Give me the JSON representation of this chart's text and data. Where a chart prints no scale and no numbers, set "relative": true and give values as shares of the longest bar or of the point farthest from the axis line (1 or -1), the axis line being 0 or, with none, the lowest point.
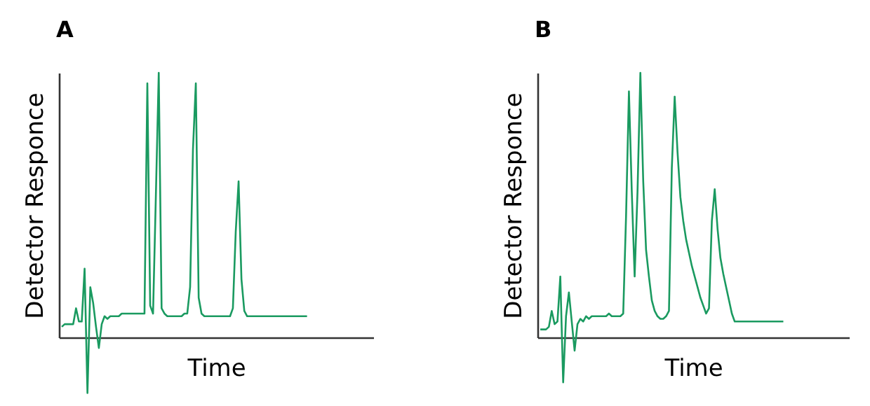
{
  "chart_data": [
    {
      "type": "line",
      "title": "A",
      "xlabel": "Time",
      "ylabel": "Detector Responce",
      "relative": true,
      "color": "#1a9a60",
      "categories": [
        null,
        null,
        null,
        null,
        null,
        null,
        null,
        null,
        null,
        null,
        null,
        null,
        null,
        null,
        null,
        null,
        null,
        null,
        null,
        null,
        null,
        null,
        null,
        null,
        null,
        null,
        null,
        null,
        null,
        null,
        null,
        null,
        null,
        null,
        null,
        null,
        null,
        null,
        null,
        null,
        null,
        null,
        null,
        null,
        null,
        null,
        null,
        null,
        null,
        null,
        null,
        null,
        null,
        null,
        null,
        null,
        null,
        null,
        null,
        null,
        null,
        null,
        null,
        null,
        null,
        null,
        null,
        null,
        null,
        null,
        null,
        null,
        null,
        null,
        null,
        null,
        null,
        null,
        null,
        null,
        null,
        null,
        null,
        null,
        null,
        null,
        null
      ],
      "values": [
        0.04,
        0.05,
        0.05,
        0.05,
        0.05,
        0.11,
        0.06,
        0.06,
        0.26,
        -0.21,
        0.19,
        0.13,
        0.04,
        -0.04,
        0.05,
        0.08,
        0.07,
        0.08,
        0.08,
        0.08,
        0.08,
        0.09,
        0.09,
        0.09,
        0.09,
        0.09,
        0.09,
        0.09,
        0.09,
        0.09,
        0.96,
        0.12,
        0.09,
        0.54,
        1,
        0.11,
        0.09,
        0.08,
        0.08,
        0.08,
        0.08,
        0.08,
        0.08,
        0.09,
        0.09,
        0.19,
        0.71,
        0.96,
        0.15,
        0.09,
        0.08,
        0.08,
        0.08,
        0.08,
        0.08,
        0.08,
        0.08,
        0.08,
        0.08,
        0.08,
        0.11,
        0.4,
        0.59,
        0.22,
        0.1,
        0.08,
        0.08,
        0.08,
        0.08,
        0.08,
        0.08,
        0.08,
        0.08,
        0.08,
        0.08,
        0.08,
        0.08,
        0.08,
        0.08,
        0.08,
        0.08,
        0.08,
        0.08,
        0.08,
        0.08,
        0.08,
        0.08
      ]
    },
    {
      "type": "line",
      "title": "B",
      "xlabel": "Time",
      "ylabel": "Detector Responce",
      "relative": true,
      "color": "#1a9a60",
      "categories": [
        null,
        null,
        null,
        null,
        null,
        null,
        null,
        null,
        null,
        null,
        null,
        null,
        null,
        null,
        null,
        null,
        null,
        null,
        null,
        null,
        null,
        null,
        null,
        null,
        null,
        null,
        null,
        null,
        null,
        null,
        null,
        null,
        null,
        null,
        null,
        null,
        null,
        null,
        null,
        null,
        null,
        null,
        null,
        null,
        null,
        null,
        null,
        null,
        null,
        null,
        null,
        null,
        null,
        null,
        null,
        null,
        null,
        null,
        null,
        null,
        null,
        null,
        null,
        null,
        null,
        null,
        null,
        null,
        null,
        null,
        null,
        null,
        null,
        null,
        null,
        null,
        null,
        null,
        null,
        null,
        null,
        null,
        null,
        null,
        null,
        null
      ],
      "values": [
        0.03,
        0.03,
        0.03,
        0.04,
        0.1,
        0.05,
        0.06,
        0.23,
        -0.17,
        0.08,
        0.17,
        0.06,
        -0.05,
        0.05,
        0.07,
        0.06,
        0.08,
        0.07,
        0.08,
        0.08,
        0.08,
        0.08,
        0.08,
        0.08,
        0.09,
        0.08,
        0.08,
        0.08,
        0.08,
        0.09,
        0.46,
        0.93,
        0.55,
        0.23,
        0.55,
        1,
        0.59,
        0.33,
        0.23,
        0.14,
        0.1,
        0.08,
        0.07,
        0.07,
        0.08,
        0.1,
        0.64,
        0.91,
        0.7,
        0.53,
        0.44,
        0.37,
        0.32,
        0.27,
        0.23,
        0.19,
        0.15,
        0.12,
        0.09,
        0.11,
        0.44,
        0.56,
        0.41,
        0.3,
        0.24,
        0.19,
        0.14,
        0.09,
        0.06,
        0.06,
        0.06,
        0.06,
        0.06,
        0.06,
        0.06,
        0.06,
        0.06,
        0.06,
        0.06,
        0.06,
        0.06,
        0.06,
        0.06,
        0.06,
        0.06,
        0.06
      ]
    }
  ]
}
